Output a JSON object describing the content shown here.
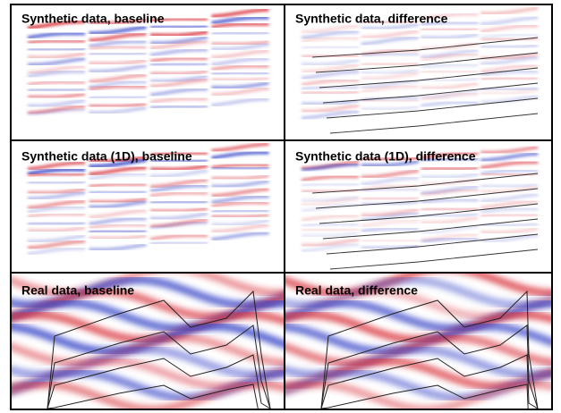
{
  "panels": [
    {
      "title": "Synthetic data, baseline"
    },
    {
      "title": "Synthetic data, difference"
    },
    {
      "title": "Synthetic data (1D), baseline"
    },
    {
      "title": "Synthetic data (1D), difference"
    },
    {
      "title": "Real data, baseline"
    },
    {
      "title": "Real data, difference"
    }
  ]
}
